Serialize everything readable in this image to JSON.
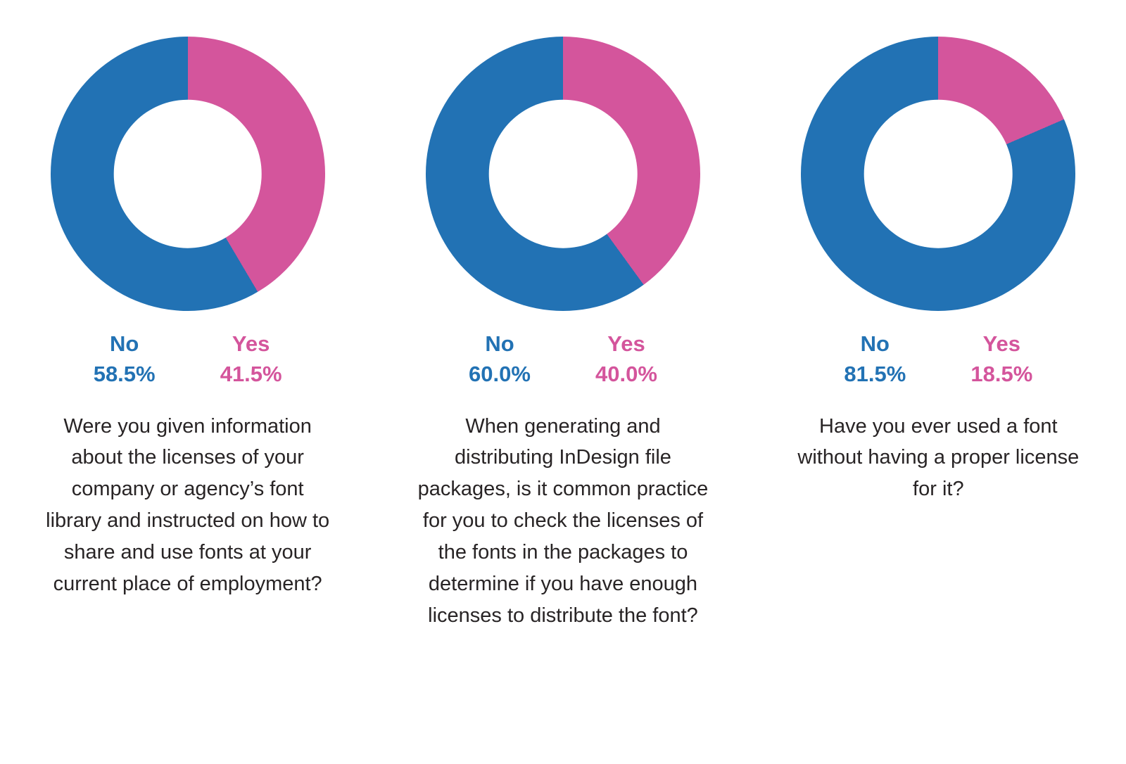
{
  "page": {
    "background_color": "#ffffff",
    "text_color": "#282425"
  },
  "chart_data": [
    {
      "type": "pie",
      "variant": "donut",
      "start_angle_deg": 0,
      "direction": "clockwise",
      "first_segment": "Yes",
      "labels": [
        "No",
        "Yes"
      ],
      "values": [
        58.5,
        41.5
      ],
      "value_labels": [
        "58.5%",
        "41.5%"
      ],
      "colors": [
        "#2272b4",
        "#d4559c"
      ],
      "legend_position": "bottom",
      "question": "Were you given information about the licenses of your company or agency’s font library and instructed on how to share and use fonts at your current place of employment?"
    },
    {
      "type": "pie",
      "variant": "donut",
      "start_angle_deg": 0,
      "direction": "clockwise",
      "first_segment": "Yes",
      "labels": [
        "No",
        "Yes"
      ],
      "values": [
        60.0,
        40.0
      ],
      "value_labels": [
        "60.0%",
        "40.0%"
      ],
      "colors": [
        "#2272b4",
        "#d4559c"
      ],
      "legend_position": "bottom",
      "question": "When generating and distributing InDesign file packages, is it common practice for you to check the licenses of the fonts in the packages to determine if you have enough licenses to distribute the font?"
    },
    {
      "type": "pie",
      "variant": "donut",
      "start_angle_deg": 0,
      "direction": "clockwise",
      "first_segment": "Yes",
      "labels": [
        "No",
        "Yes"
      ],
      "values": [
        81.5,
        18.5
      ],
      "value_labels": [
        "81.5%",
        "18.5%"
      ],
      "colors": [
        "#2272b4",
        "#d4559c"
      ],
      "legend_position": "bottom",
      "question": "Have you ever used a font without having a proper license for it?"
    }
  ]
}
